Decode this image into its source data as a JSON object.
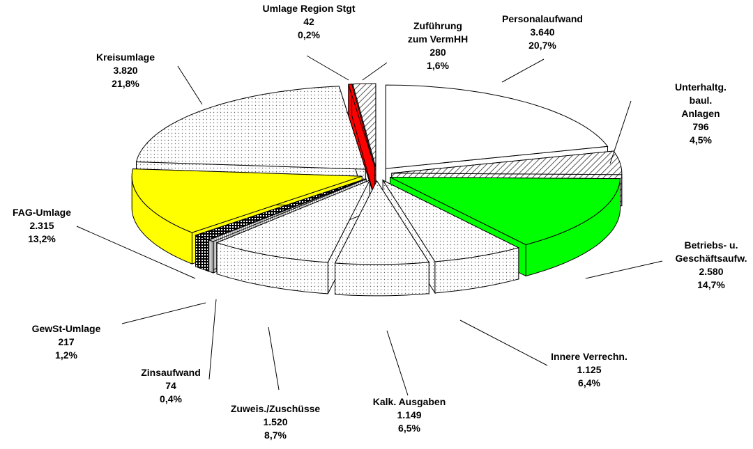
{
  "chart_data": {
    "type": "pie3d",
    "categories": [
      "Personalaufwand",
      "Unterhaltg.\nbaul. Anlagen",
      "Betriebs- u.\nGeschäftsaufw.",
      "Innere Verrechn.",
      "Kalk. Ausgaben",
      "Zuweis./Zuschüsse",
      "Zinsaufwand",
      "GewSt-Umlage",
      "FAG-Umlage",
      "Kreisumlage",
      "Umlage Region Stgt",
      "Zuführung\nzum VermHH"
    ],
    "values": [
      3640,
      796,
      2580,
      1125,
      1149,
      1520,
      74,
      217,
      2315,
      3820,
      42,
      280
    ],
    "value_labels": [
      "3.640",
      "796",
      "2.580",
      "1.125",
      "1.149",
      "1.520",
      "74",
      "217",
      "2.315",
      "3.820",
      "42",
      "280"
    ],
    "percents": [
      20.7,
      4.5,
      14.7,
      6.4,
      6.5,
      8.7,
      0.4,
      1.2,
      13.2,
      21.8,
      0.2,
      1.6
    ],
    "percent_labels": [
      "20,7%",
      "4,5%",
      "14,7%",
      "6,4%",
      "6,5%",
      "8,7%",
      "0,4%",
      "1,2%",
      "13,2%",
      "21,8%",
      "0,2%",
      "1,6%"
    ],
    "colors": [
      "#ffffff",
      "#ffffff",
      "#00ff00",
      "#ffffff",
      "#ffffff",
      "#ffffff",
      "#ffffff",
      "#ffffff",
      "#ffff00",
      "#ffffff",
      "#ff0000",
      "#ffffff"
    ],
    "patterns": [
      "none",
      "hatch",
      "none",
      "dots",
      "dots",
      "dots",
      "lines",
      "cross",
      "none",
      "dots",
      "none",
      "hatch"
    ]
  }
}
